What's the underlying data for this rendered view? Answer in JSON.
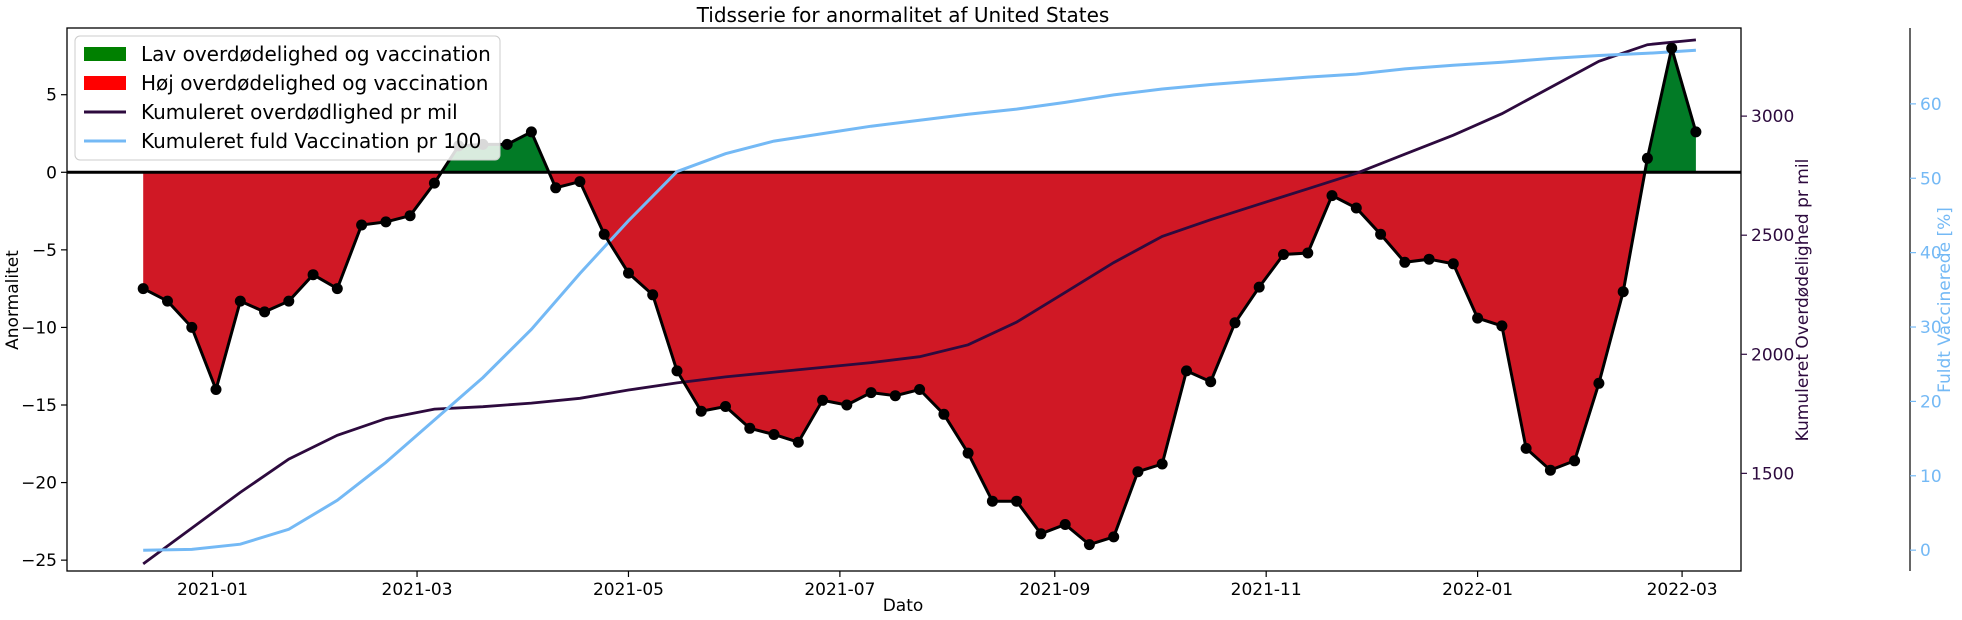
{
  "chart_data": {
    "type": "line",
    "title": "Tidsserie for anormalitet af United States",
    "xlabel": "Dato",
    "ylabel": "Anormalitet",
    "y2label": "Kumuleret Overdødelighed pr mil",
    "y3label": "Fuldt Vaccinerede [%]",
    "x_ticks": [
      "2021-01",
      "2021-03",
      "2021-05",
      "2021-07",
      "2021-09",
      "2021-11",
      "2022-01",
      "2022-03"
    ],
    "y_ticks": [
      5,
      0,
      -5,
      -10,
      -15,
      -20,
      -25
    ],
    "y2_ticks": [
      3000,
      2500,
      2000,
      1500
    ],
    "y3_ticks": [
      60,
      50,
      40,
      30,
      20,
      10,
      0
    ],
    "ylim": [
      -25.7,
      9.3
    ],
    "y2lim": [
      1090,
      3370
    ],
    "y3lim": [
      -2.8,
      70.2
    ],
    "xlim": [
      "2020-11-20",
      "2022-03-18"
    ],
    "grid": false,
    "legend_position": "top-left",
    "legend": [
      {
        "label": "Lav overdødelighed og vaccination",
        "kind": "patch",
        "color": "#008000"
      },
      {
        "label": "Høj overdødelighed og vaccination",
        "kind": "patch",
        "color": "#ff0000"
      },
      {
        "label": "Kumuleret overdødlighed pr mil",
        "kind": "line",
        "color": "#2d0a3e"
      },
      {
        "label": "Kumuleret fuld Vaccination pr 100",
        "kind": "line",
        "color": "#74b9f5"
      }
    ],
    "colors": {
      "positive_fill": "#027b26",
      "negative_fill": "#d01825",
      "anomaly_line": "#000000",
      "deaths_line": "#2d0a3e",
      "vaccination_line": "#74b9f5",
      "y2_axis": "#2d0a3e",
      "y3_axis": "#74b9f5"
    },
    "series": [
      {
        "name": "Anormalitet",
        "axis": "left",
        "x": [
          "2020-12-12",
          "2020-12-19",
          "2020-12-26",
          "2021-01-02",
          "2021-01-09",
          "2021-01-16",
          "2021-01-23",
          "2021-01-30",
          "2021-02-06",
          "2021-02-13",
          "2021-02-20",
          "2021-02-27",
          "2021-03-06",
          "2021-03-13",
          "2021-03-20",
          "2021-03-27",
          "2021-04-03",
          "2021-04-10",
          "2021-04-17",
          "2021-04-24",
          "2021-05-01",
          "2021-05-08",
          "2021-05-15",
          "2021-05-22",
          "2021-05-29",
          "2021-06-05",
          "2021-06-12",
          "2021-06-19",
          "2021-06-26",
          "2021-07-03",
          "2021-07-10",
          "2021-07-17",
          "2021-07-24",
          "2021-07-31",
          "2021-08-07",
          "2021-08-14",
          "2021-08-21",
          "2021-08-28",
          "2021-09-04",
          "2021-09-11",
          "2021-09-18",
          "2021-09-25",
          "2021-10-02",
          "2021-10-09",
          "2021-10-16",
          "2021-10-23",
          "2021-10-30",
          "2021-11-06",
          "2021-11-13",
          "2021-11-20",
          "2021-11-27",
          "2021-12-04",
          "2021-12-11",
          "2021-12-18",
          "2021-12-25",
          "2022-01-01",
          "2022-01-08",
          "2022-01-15",
          "2022-01-22",
          "2022-01-29",
          "2022-02-05",
          "2022-02-12",
          "2022-02-19",
          "2022-02-26",
          "2022-03-05"
        ],
        "values": [
          -7.5,
          -8.3,
          -10.0,
          -14.0,
          -8.3,
          -9.0,
          -8.3,
          -6.6,
          -7.5,
          -3.4,
          -3.2,
          -2.8,
          -0.7,
          1.7,
          1.8,
          1.8,
          2.6,
          -1.0,
          -0.6,
          -4.0,
          -6.5,
          -7.9,
          -12.8,
          -15.4,
          -15.1,
          -16.5,
          -16.9,
          -17.4,
          -14.7,
          -15.0,
          -14.2,
          -14.4,
          -14.0,
          -15.6,
          -18.1,
          -21.2,
          -21.2,
          -23.3,
          -22.7,
          -24.0,
          -23.5,
          -19.3,
          -18.8,
          -12.8,
          -13.5,
          -9.7,
          -7.4,
          -5.3,
          -5.2,
          -1.5,
          -2.3,
          -4.0,
          -5.8,
          -5.6,
          -5.9,
          -9.4,
          -9.9,
          -17.8,
          -19.2,
          -18.6,
          -13.6,
          -7.7,
          0.9,
          8.0,
          2.6
        ]
      },
      {
        "name": "Kumuleret overdødlighed pr mil",
        "axis": "right",
        "x": [
          "2020-12-12",
          "2020-12-26",
          "2021-01-09",
          "2021-01-23",
          "2021-02-06",
          "2021-02-20",
          "2021-03-06",
          "2021-03-20",
          "2021-04-03",
          "2021-04-17",
          "2021-05-01",
          "2021-05-15",
          "2021-05-29",
          "2021-06-12",
          "2021-06-26",
          "2021-07-10",
          "2021-07-24",
          "2021-08-07",
          "2021-08-21",
          "2021-09-04",
          "2021-09-18",
          "2021-10-02",
          "2021-10-16",
          "2021-10-30",
          "2021-11-13",
          "2021-11-27",
          "2021-12-11",
          "2021-12-25",
          "2022-01-08",
          "2022-01-22",
          "2022-02-05",
          "2022-02-19",
          "2022-03-05"
        ],
        "values": [
          1120,
          1270,
          1420,
          1560,
          1660,
          1730,
          1770,
          1780,
          1795,
          1815,
          1850,
          1880,
          1905,
          1925,
          1945,
          1965,
          1990,
          2040,
          2135,
          2260,
          2385,
          2495,
          2565,
          2630,
          2695,
          2760,
          2840,
          2920,
          3010,
          3120,
          3230,
          3300,
          3320
        ]
      },
      {
        "name": "Kumuleret fuld Vaccination pr 100",
        "axis": "right2",
        "x": [
          "2020-12-12",
          "2020-12-26",
          "2021-01-09",
          "2021-01-23",
          "2021-02-06",
          "2021-02-20",
          "2021-03-06",
          "2021-03-20",
          "2021-04-03",
          "2021-04-17",
          "2021-05-01",
          "2021-05-15",
          "2021-05-29",
          "2021-06-12",
          "2021-06-26",
          "2021-07-10",
          "2021-07-24",
          "2021-08-07",
          "2021-08-21",
          "2021-09-04",
          "2021-09-18",
          "2021-10-02",
          "2021-10-16",
          "2021-10-30",
          "2021-11-13",
          "2021-11-27",
          "2021-12-11",
          "2021-12-25",
          "2022-01-08",
          "2022-01-22",
          "2022-02-05",
          "2022-02-19",
          "2022-03-05"
        ],
        "values": [
          0,
          0.1,
          0.8,
          2.8,
          6.7,
          11.8,
          17.5,
          23.2,
          29.7,
          37.2,
          44.3,
          50.9,
          53.3,
          55.0,
          56.0,
          57.0,
          57.8,
          58.6,
          59.3,
          60.2,
          61.2,
          62.0,
          62.6,
          63.1,
          63.6,
          64.0,
          64.7,
          65.2,
          65.6,
          66.1,
          66.5,
          66.8,
          67.2
        ]
      }
    ]
  }
}
